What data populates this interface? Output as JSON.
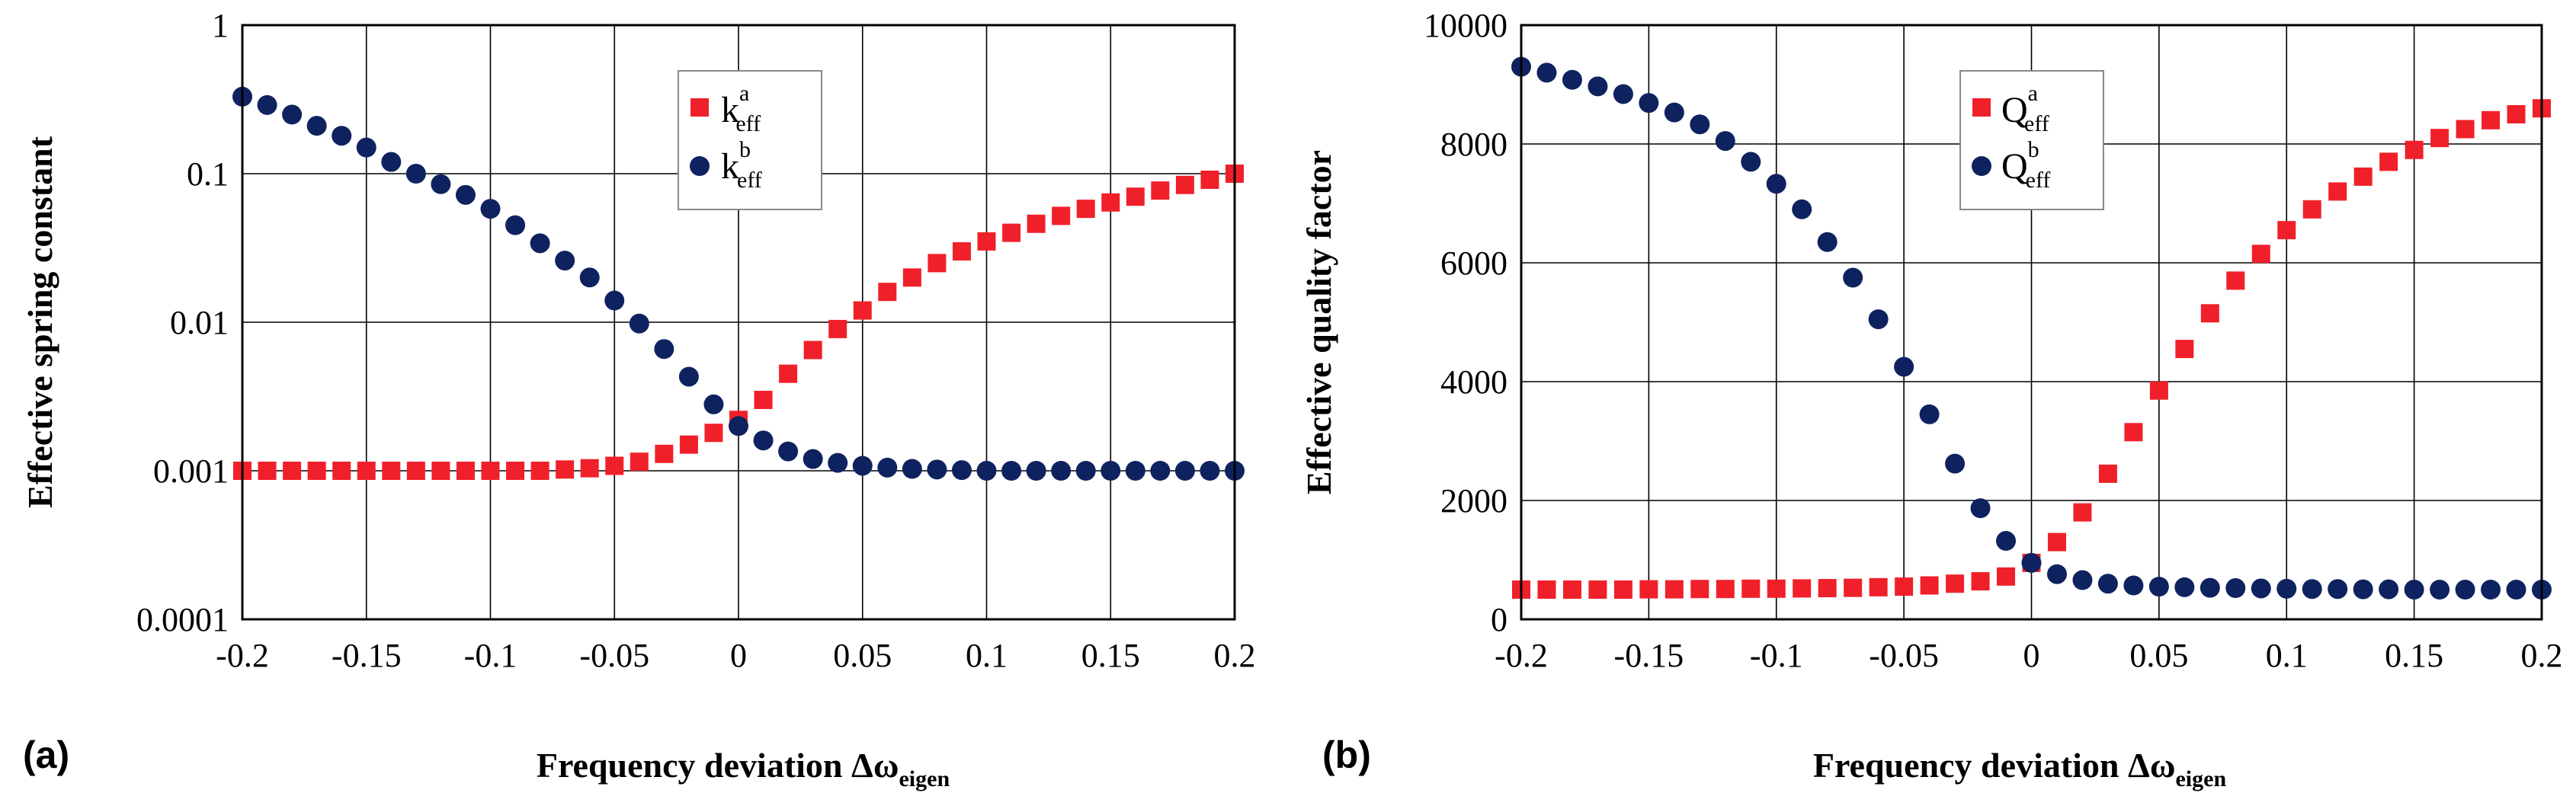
{
  "colors": {
    "series_a": "#f0202a",
    "series_b": "#0f2260"
  },
  "chart_data": [
    {
      "type": "scatter",
      "panel_label": "(a)",
      "title": "",
      "xlabel": {
        "main": "Frequency deviation Δω",
        "sub": "eigen"
      },
      "ylabel": "Effective spring constant",
      "yscale": "log",
      "xlim": [
        -0.2,
        0.2
      ],
      "ylim": [
        0.0001,
        1
      ],
      "x_ticks": [
        "-0.2",
        "-0.15",
        "-0.1",
        "-0.05",
        "0",
        "0.05",
        "0.1",
        "0.15",
        "0.2"
      ],
      "y_ticks": [
        "0.0001",
        "0.001",
        "0.01",
        "0.1",
        "1"
      ],
      "legend_position": "top-center",
      "series": [
        {
          "name": "k_eff^a",
          "label": {
            "main": "k",
            "sub": "eff",
            "sup": "a"
          },
          "marker": "square",
          "x": [
            -0.2,
            -0.19,
            -0.18,
            -0.17,
            -0.16,
            -0.15,
            -0.14,
            -0.13,
            -0.12,
            -0.11,
            -0.1,
            -0.09,
            -0.08,
            -0.07,
            -0.06,
            -0.05,
            -0.04,
            -0.03,
            -0.02,
            -0.01,
            0,
            0.01,
            0.02,
            0.03,
            0.04,
            0.05,
            0.06,
            0.07,
            0.08,
            0.09,
            0.1,
            0.11,
            0.12,
            0.13,
            0.14,
            0.15,
            0.16,
            0.17,
            0.18,
            0.19,
            0.2
          ],
          "values": [
            0.001,
            0.001,
            0.001,
            0.001,
            0.001,
            0.001,
            0.001,
            0.001,
            0.001,
            0.001,
            0.001,
            0.001,
            0.001,
            0.00102,
            0.00104,
            0.00108,
            0.00115,
            0.0013,
            0.0015,
            0.0018,
            0.0022,
            0.003,
            0.0045,
            0.0065,
            0.009,
            0.012,
            0.016,
            0.02,
            0.025,
            0.03,
            0.035,
            0.04,
            0.046,
            0.052,
            0.058,
            0.064,
            0.07,
            0.077,
            0.084,
            0.091,
            0.1
          ]
        },
        {
          "name": "k_eff^b",
          "label": {
            "main": "k",
            "sub": "eff",
            "sup": "b"
          },
          "marker": "circle",
          "x": [
            -0.2,
            -0.19,
            -0.18,
            -0.17,
            -0.16,
            -0.15,
            -0.14,
            -0.13,
            -0.12,
            -0.11,
            -0.1,
            -0.09,
            -0.08,
            -0.07,
            -0.06,
            -0.05,
            -0.04,
            -0.03,
            -0.02,
            -0.01,
            0,
            0.01,
            0.02,
            0.03,
            0.04,
            0.05,
            0.06,
            0.07,
            0.08,
            0.09,
            0.1,
            0.11,
            0.12,
            0.13,
            0.14,
            0.15,
            0.16,
            0.17,
            0.18,
            0.19,
            0.2
          ],
          "values": [
            0.33,
            0.29,
            0.25,
            0.21,
            0.18,
            0.15,
            0.12,
            0.1,
            0.085,
            0.072,
            0.058,
            0.045,
            0.034,
            0.026,
            0.02,
            0.014,
            0.0098,
            0.0066,
            0.0043,
            0.0028,
            0.002,
            0.0016,
            0.00135,
            0.0012,
            0.00113,
            0.00108,
            0.00105,
            0.00103,
            0.00102,
            0.00101,
            0.001,
            0.001,
            0.001,
            0.001,
            0.001,
            0.001,
            0.001,
            0.001,
            0.001,
            0.001,
            0.001
          ]
        }
      ]
    },
    {
      "type": "scatter",
      "panel_label": "(b)",
      "title": "",
      "xlabel": {
        "main": "Frequency deviation Δω",
        "sub": "eigen"
      },
      "ylabel": "Effective quality factor",
      "yscale": "linear",
      "xlim": [
        -0.2,
        0.2
      ],
      "ylim": [
        0,
        10000
      ],
      "x_ticks": [
        "-0.2",
        "-0.15",
        "-0.1",
        "-0.05",
        "0",
        "0.05",
        "0.1",
        "0.15",
        "0.2"
      ],
      "y_ticks": [
        "0",
        "2000",
        "4000",
        "6000",
        "8000",
        "10000"
      ],
      "legend_position": "top-right",
      "series": [
        {
          "name": "Q_eff^a",
          "label": {
            "main": "Q",
            "sub": "eff",
            "sup": "a"
          },
          "marker": "square",
          "x": [
            -0.2,
            -0.19,
            -0.18,
            -0.17,
            -0.16,
            -0.15,
            -0.14,
            -0.13,
            -0.12,
            -0.11,
            -0.1,
            -0.09,
            -0.08,
            -0.07,
            -0.06,
            -0.05,
            -0.04,
            -0.03,
            -0.02,
            -0.01,
            0,
            0.01,
            0.02,
            0.03,
            0.04,
            0.05,
            0.06,
            0.07,
            0.08,
            0.09,
            0.1,
            0.11,
            0.12,
            0.13,
            0.14,
            0.15,
            0.16,
            0.17,
            0.18,
            0.19,
            0.2
          ],
          "values": [
            500,
            500,
            500,
            500,
            500,
            505,
            505,
            510,
            510,
            515,
            515,
            520,
            525,
            530,
            540,
            550,
            570,
            600,
            640,
            720,
            950,
            1300,
            1800,
            2450,
            3150,
            3850,
            4550,
            5150,
            5700,
            6150,
            6550,
            6900,
            7200,
            7450,
            7700,
            7900,
            8100,
            8250,
            8400,
            8500,
            8600
          ]
        },
        {
          "name": "Q_eff^b",
          "label": {
            "main": "Q",
            "sub": "eff",
            "sup": "b"
          },
          "marker": "circle",
          "x": [
            -0.2,
            -0.19,
            -0.18,
            -0.17,
            -0.16,
            -0.15,
            -0.14,
            -0.13,
            -0.12,
            -0.11,
            -0.1,
            -0.09,
            -0.08,
            -0.07,
            -0.06,
            -0.05,
            -0.04,
            -0.03,
            -0.02,
            -0.01,
            0,
            0.01,
            0.02,
            0.03,
            0.04,
            0.05,
            0.06,
            0.07,
            0.08,
            0.09,
            0.1,
            0.11,
            0.12,
            0.13,
            0.14,
            0.15,
            0.16,
            0.17,
            0.18,
            0.19,
            0.2
          ],
          "values": [
            9300,
            9200,
            9080,
            8970,
            8840,
            8690,
            8530,
            8330,
            8050,
            7700,
            7330,
            6900,
            6350,
            5750,
            5050,
            4250,
            3450,
            2620,
            1870,
            1320,
            950,
            760,
            660,
            600,
            570,
            550,
            540,
            530,
            525,
            520,
            515,
            510,
            510,
            505,
            505,
            500,
            500,
            500,
            500,
            500,
            500
          ]
        }
      ]
    }
  ]
}
